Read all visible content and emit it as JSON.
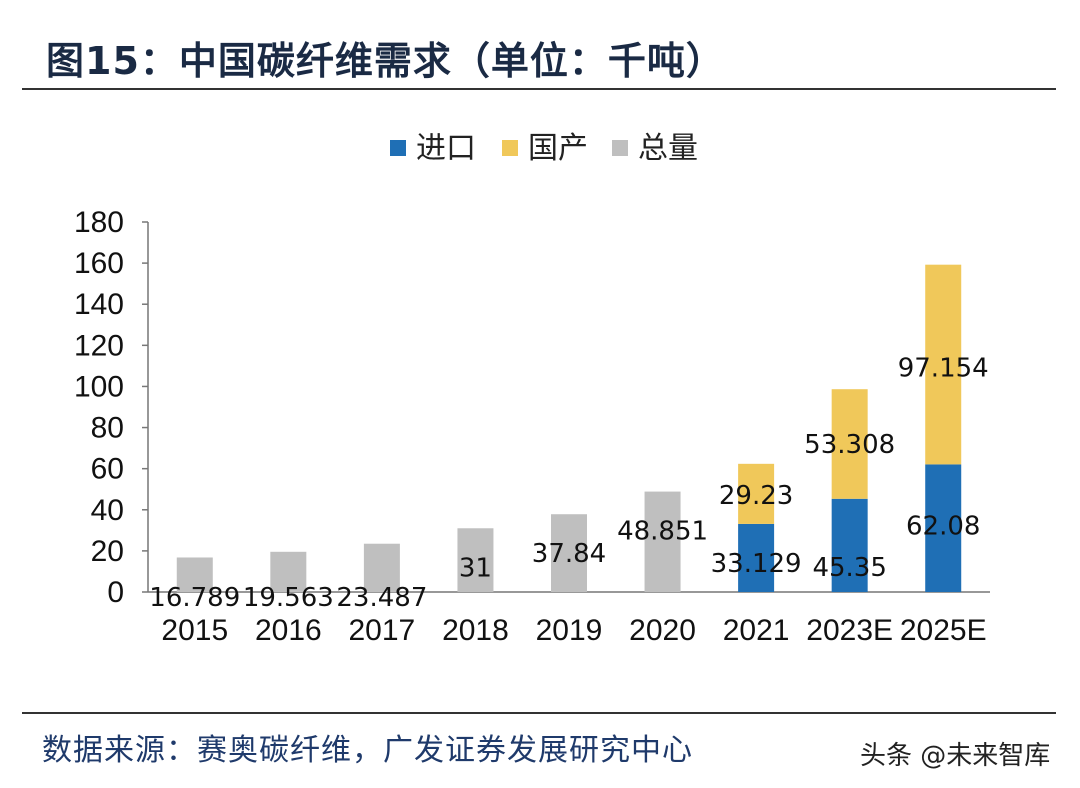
{
  "header": {
    "title": "图15：中国碳纤维需求（单位：千吨）"
  },
  "footer": {
    "source": "数据来源：赛奥碳纤维，广发证券发展研究中心",
    "watermark": "头条 @未来智库"
  },
  "chart_data": {
    "type": "bar",
    "stacked": true,
    "categories": [
      "2015",
      "2016",
      "2017",
      "2018",
      "2019",
      "2020",
      "2021",
      "2023E",
      "2025E"
    ],
    "series": [
      {
        "name": "进口",
        "color": "#1f6fb5",
        "values": [
          null,
          null,
          null,
          null,
          null,
          null,
          33.129,
          45.35,
          62.08
        ]
      },
      {
        "name": "国产",
        "color": "#f0c85a",
        "values": [
          null,
          null,
          null,
          null,
          null,
          null,
          29.23,
          53.308,
          97.154
        ]
      },
      {
        "name": "总量",
        "color": "#bfbfbf",
        "values": [
          16.789,
          19.563,
          23.487,
          31,
          37.84,
          48.851,
          null,
          null,
          null
        ]
      }
    ],
    "data_labels": [
      {
        "category": "2015",
        "series": "总量",
        "text": "16.789"
      },
      {
        "category": "2016",
        "series": "总量",
        "text": "19.563"
      },
      {
        "category": "2017",
        "series": "总量",
        "text": "23.487"
      },
      {
        "category": "2018",
        "series": "总量",
        "text": "31"
      },
      {
        "category": "2019",
        "series": "总量",
        "text": "37.84"
      },
      {
        "category": "2020",
        "series": "总量",
        "text": "48.851"
      },
      {
        "category": "2021",
        "series": "进口",
        "text": "33.129"
      },
      {
        "category": "2021",
        "series": "国产",
        "text": "29.23"
      },
      {
        "category": "2023E",
        "series": "进口",
        "text": "45.35"
      },
      {
        "category": "2023E",
        "series": "国产",
        "text": "53.308"
      },
      {
        "category": "2025E",
        "series": "进口",
        "text": "62.08"
      },
      {
        "category": "2025E",
        "series": "国产",
        "text": "97.154"
      }
    ],
    "ylim": [
      0,
      180
    ],
    "yticks": [
      0,
      20,
      40,
      60,
      80,
      100,
      120,
      140,
      160,
      180
    ],
    "legend_position": "top-center",
    "grid": false
  }
}
